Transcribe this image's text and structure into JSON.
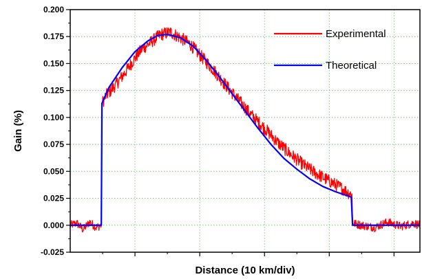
{
  "chart_data": {
    "type": "line",
    "xlabel": "Distance (10 km/div)",
    "ylabel": "Gain (%)",
    "ylim": [
      -0.025,
      0.2
    ],
    "xlim": [
      0,
      5.4
    ],
    "y_ticks": [
      "-0.025",
      "0.000",
      "0.025",
      "0.050",
      "0.075",
      "0.100",
      "0.125",
      "0.150",
      "0.175",
      "0.200"
    ],
    "x_ticks_labeled": false,
    "grid": true,
    "legend_position": "top-right",
    "series": [
      {
        "name": "Experimental",
        "color": "#ff0000",
        "noisy": true,
        "x": [
          0.0,
          0.1,
          0.2,
          0.3,
          0.4,
          0.48,
          0.49,
          0.55,
          0.7,
          0.85,
          1.0,
          1.1,
          1.25,
          1.4,
          1.55,
          1.7,
          1.85,
          2.0,
          2.2,
          2.4,
          2.6,
          2.8,
          3.0,
          3.2,
          3.4,
          3.6,
          3.8,
          4.0,
          4.2,
          4.35,
          4.36,
          4.5,
          4.7,
          4.9,
          5.1,
          5.3,
          5.4
        ],
        "y": [
          0.0,
          0.002,
          -0.004,
          0.003,
          -0.002,
          0.0,
          0.113,
          0.12,
          0.13,
          0.142,
          0.155,
          0.163,
          0.17,
          0.177,
          0.179,
          0.174,
          0.168,
          0.158,
          0.145,
          0.13,
          0.116,
          0.102,
          0.09,
          0.077,
          0.066,
          0.056,
          0.048,
          0.041,
          0.034,
          0.028,
          0.002,
          0.0,
          -0.002,
          0.003,
          -0.001,
          0.002,
          0.0
        ]
      },
      {
        "name": "Theoretical",
        "color": "#0000ff",
        "noisy": false,
        "x": [
          0.0,
          0.48,
          0.49,
          0.6,
          0.8,
          1.0,
          1.2,
          1.35,
          1.5,
          1.7,
          1.9,
          2.1,
          2.3,
          2.5,
          2.7,
          2.9,
          3.1,
          3.3,
          3.5,
          3.7,
          3.9,
          4.1,
          4.3,
          4.34,
          4.36,
          5.4
        ],
        "y": [
          0.0,
          0.0,
          0.113,
          0.128,
          0.146,
          0.161,
          0.171,
          0.176,
          0.177,
          0.174,
          0.166,
          0.153,
          0.138,
          0.122,
          0.106,
          0.09,
          0.075,
          0.062,
          0.052,
          0.043,
          0.036,
          0.031,
          0.027,
          0.026,
          0.0,
          0.0
        ]
      }
    ]
  }
}
